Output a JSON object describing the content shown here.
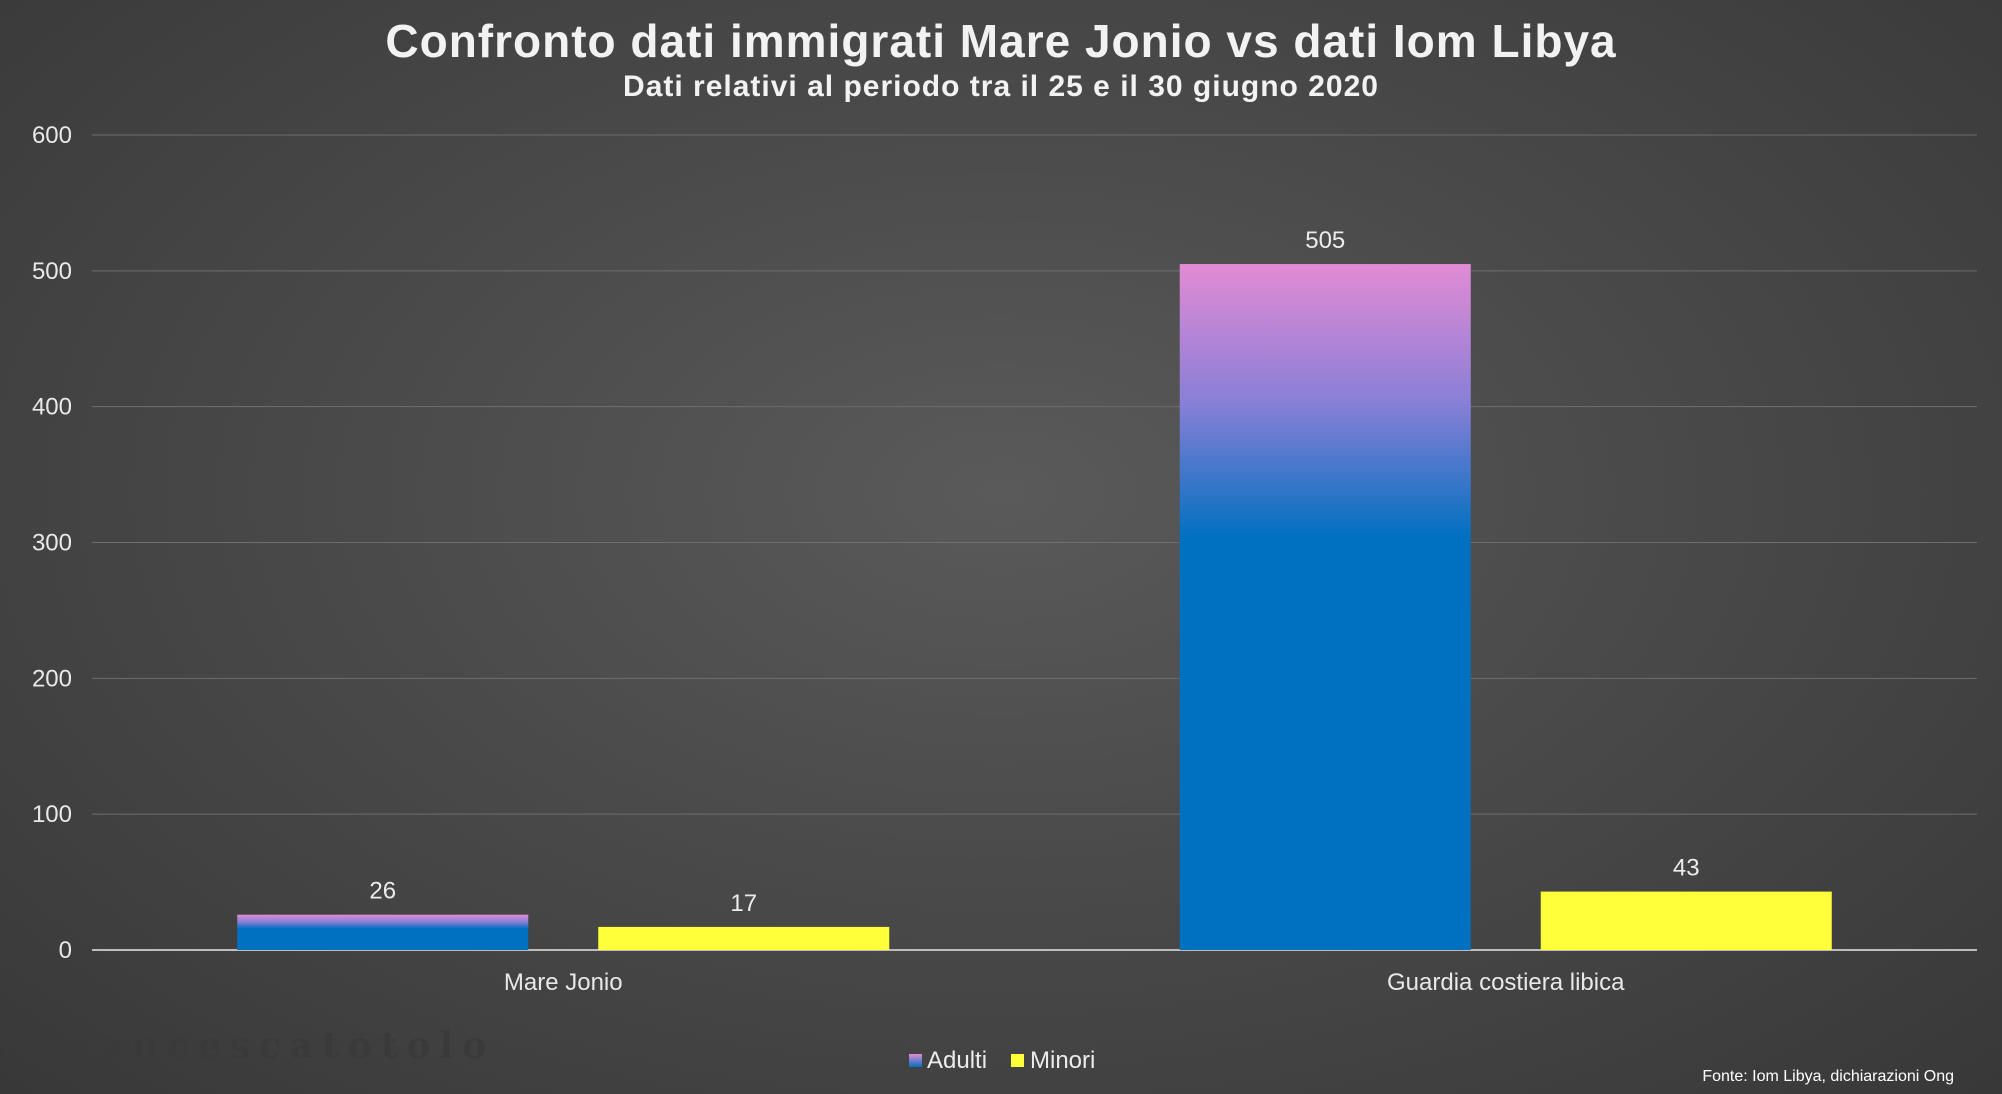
{
  "chart_data": {
    "type": "bar",
    "title": "Confronto dati immigrati Mare Jonio vs dati Iom Libya",
    "subtitle": "Dati relativi al periodo tra il 25 e il 30 giugno 2020",
    "categories": [
      "Mare Jonio",
      "Guardia costiera libica"
    ],
    "series": [
      {
        "name": "Adulti",
        "values": [
          26,
          505
        ]
      },
      {
        "name": "Minori",
        "values": [
          17,
          43
        ]
      }
    ],
    "ylim": [
      0,
      600
    ],
    "yticks": [
      0,
      100,
      200,
      300,
      400,
      500,
      600
    ],
    "grid": true,
    "legend_position": "bottom-center",
    "colors": {
      "adulti_bottom": "#0070c0",
      "adulti_top": "#e08cd4",
      "minori": "#ffff3a"
    }
  },
  "watermark": "@francescatotolo",
  "source": "Fonte: Iom Libya, dichiarazioni Ong"
}
